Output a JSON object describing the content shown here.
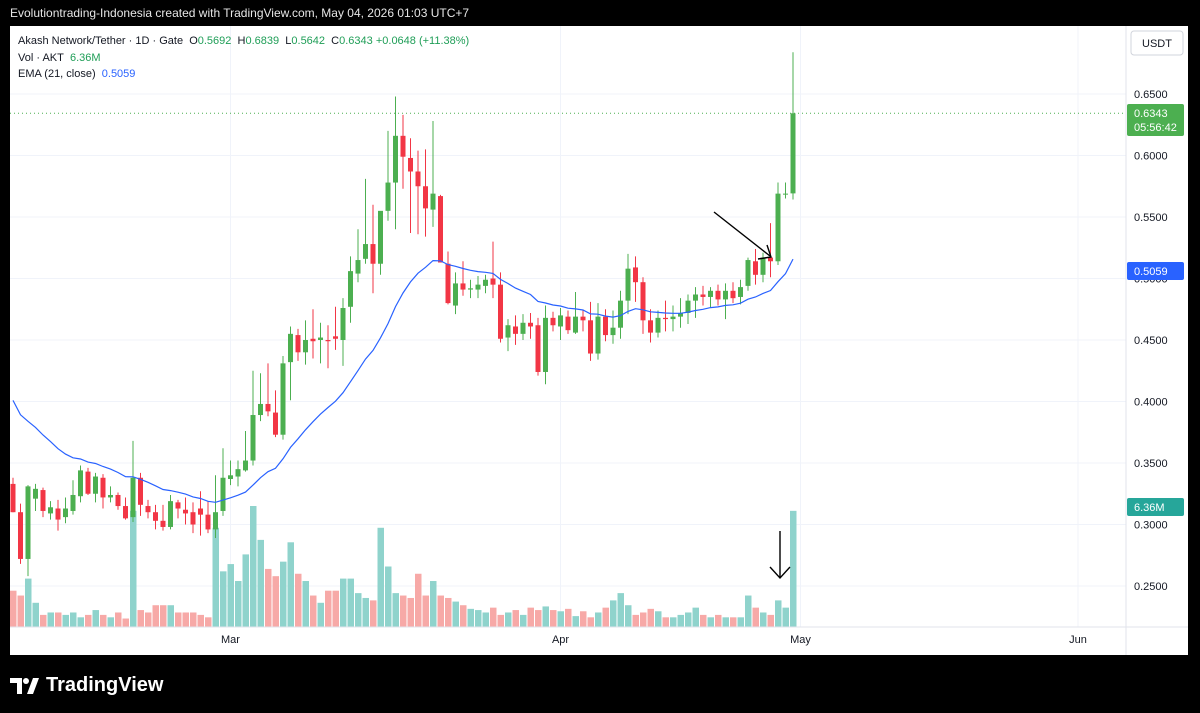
{
  "caption": "Evolutiontrading-Indonesia created with TradingView.com, May 04, 2026 01:03 UTC+7",
  "legend": {
    "symbol": "Akash Network/Tether · 1D · Gate",
    "o_label": "O",
    "o_val": "0.5692",
    "h_label": "H",
    "h_val": "0.6839",
    "l_label": "L",
    "l_val": "0.5642",
    "c_label": "C",
    "c_val": "0.6343",
    "change": "+0.0648 (+11.38%)",
    "vol_label": "Vol · AKT",
    "vol_val": "6.36M",
    "ema_label": "EMA (21, close)",
    "ema_val": "0.5059"
  },
  "currency_button": "USDT",
  "price_badge": {
    "price": "0.6343",
    "countdown": "05:56:42"
  },
  "ema_badge": "0.5059",
  "volume_badge": "6.36M",
  "brand": "TradingView",
  "colors": {
    "up": "#4caf50",
    "down": "#f23645",
    "ema": "#2962ff",
    "vol_up": "#8fd3cc",
    "vol_down": "#f7a9a7"
  },
  "chart_data": {
    "type": "candlestick",
    "y_ticks": [
      "0.6500",
      "0.6000",
      "0.5500",
      "0.5000",
      "0.4500",
      "0.4000",
      "0.3500",
      "0.3000",
      "0.2500"
    ],
    "ylim": [
      0.22,
      0.7
    ],
    "x_ticks": [
      "Mar",
      "Apr",
      "May",
      "Jun"
    ],
    "candles": [
      [
        0.333,
        0.338,
        0.31,
        0.31
      ],
      [
        0.31,
        0.317,
        0.268,
        0.272
      ],
      [
        0.272,
        0.332,
        0.258,
        0.331
      ],
      [
        0.321,
        0.333,
        0.311,
        0.329
      ],
      [
        0.328,
        0.33,
        0.306,
        0.311
      ],
      [
        0.309,
        0.319,
        0.304,
        0.314
      ],
      [
        0.313,
        0.32,
        0.295,
        0.304
      ],
      [
        0.306,
        0.322,
        0.301,
        0.313
      ],
      [
        0.311,
        0.336,
        0.308,
        0.324
      ],
      [
        0.323,
        0.348,
        0.318,
        0.344
      ],
      [
        0.343,
        0.346,
        0.324,
        0.325
      ],
      [
        0.325,
        0.342,
        0.318,
        0.339
      ],
      [
        0.338,
        0.341,
        0.313,
        0.322
      ],
      [
        0.322,
        0.331,
        0.318,
        0.324
      ],
      [
        0.324,
        0.326,
        0.312,
        0.315
      ],
      [
        0.315,
        0.322,
        0.304,
        0.305
      ],
      [
        0.306,
        0.368,
        0.302,
        0.338
      ],
      [
        0.338,
        0.342,
        0.307,
        0.316
      ],
      [
        0.315,
        0.32,
        0.305,
        0.31
      ],
      [
        0.31,
        0.316,
        0.296,
        0.303
      ],
      [
        0.303,
        0.316,
        0.295,
        0.298
      ],
      [
        0.298,
        0.324,
        0.296,
        0.319
      ],
      [
        0.318,
        0.32,
        0.305,
        0.313
      ],
      [
        0.312,
        0.322,
        0.3,
        0.309
      ],
      [
        0.31,
        0.318,
        0.293,
        0.3
      ],
      [
        0.313,
        0.327,
        0.291,
        0.308
      ],
      [
        0.308,
        0.319,
        0.293,
        0.296
      ],
      [
        0.296,
        0.34,
        0.289,
        0.31
      ],
      [
        0.311,
        0.362,
        0.307,
        0.338
      ],
      [
        0.337,
        0.352,
        0.332,
        0.34
      ],
      [
        0.339,
        0.352,
        0.331,
        0.345
      ],
      [
        0.344,
        0.376,
        0.343,
        0.352
      ],
      [
        0.352,
        0.425,
        0.348,
        0.389
      ],
      [
        0.389,
        0.423,
        0.384,
        0.398
      ],
      [
        0.398,
        0.431,
        0.388,
        0.392
      ],
      [
        0.391,
        0.409,
        0.371,
        0.373
      ],
      [
        0.373,
        0.437,
        0.369,
        0.431
      ],
      [
        0.432,
        0.461,
        0.401,
        0.455
      ],
      [
        0.454,
        0.459,
        0.433,
        0.44
      ],
      [
        0.44,
        0.466,
        0.43,
        0.45
      ],
      [
        0.451,
        0.475,
        0.435,
        0.449
      ],
      [
        0.45,
        0.464,
        0.431,
        0.452
      ],
      [
        0.45,
        0.462,
        0.427,
        0.449
      ],
      [
        0.453,
        0.477,
        0.442,
        0.451
      ],
      [
        0.45,
        0.484,
        0.429,
        0.476
      ],
      [
        0.477,
        0.518,
        0.464,
        0.506
      ],
      [
        0.504,
        0.54,
        0.497,
        0.515
      ],
      [
        0.516,
        0.581,
        0.512,
        0.528
      ],
      [
        0.528,
        0.56,
        0.488,
        0.512
      ],
      [
        0.512,
        0.552,
        0.503,
        0.555
      ],
      [
        0.555,
        0.62,
        0.547,
        0.578
      ],
      [
        0.578,
        0.648,
        0.54,
        0.616
      ],
      [
        0.616,
        0.633,
        0.573,
        0.599
      ],
      [
        0.598,
        0.614,
        0.537,
        0.587
      ],
      [
        0.587,
        0.604,
        0.536,
        0.575
      ],
      [
        0.575,
        0.605,
        0.534,
        0.557
      ],
      [
        0.556,
        0.628,
        0.542,
        0.569
      ],
      [
        0.567,
        0.568,
        0.513,
        0.513
      ],
      [
        0.512,
        0.522,
        0.479,
        0.48
      ],
      [
        0.478,
        0.505,
        0.471,
        0.496
      ],
      [
        0.496,
        0.514,
        0.486,
        0.491
      ],
      [
        0.491,
        0.499,
        0.484,
        0.492
      ],
      [
        0.491,
        0.502,
        0.484,
        0.495
      ],
      [
        0.494,
        0.503,
        0.488,
        0.499
      ],
      [
        0.5,
        0.53,
        0.484,
        0.495
      ],
      [
        0.495,
        0.505,
        0.448,
        0.451
      ],
      [
        0.452,
        0.467,
        0.441,
        0.462
      ],
      [
        0.461,
        0.47,
        0.446,
        0.455
      ],
      [
        0.455,
        0.471,
        0.45,
        0.464
      ],
      [
        0.464,
        0.472,
        0.451,
        0.461
      ],
      [
        0.462,
        0.468,
        0.421,
        0.424
      ],
      [
        0.424,
        0.478,
        0.414,
        0.468
      ],
      [
        0.468,
        0.473,
        0.457,
        0.462
      ],
      [
        0.461,
        0.476,
        0.45,
        0.47
      ],
      [
        0.469,
        0.474,
        0.455,
        0.458
      ],
      [
        0.456,
        0.489,
        0.455,
        0.469
      ],
      [
        0.469,
        0.474,
        0.457,
        0.466
      ],
      [
        0.466,
        0.481,
        0.433,
        0.439
      ],
      [
        0.439,
        0.48,
        0.434,
        0.469
      ],
      [
        0.469,
        0.475,
        0.449,
        0.454
      ],
      [
        0.454,
        0.474,
        0.447,
        0.46
      ],
      [
        0.46,
        0.49,
        0.451,
        0.482
      ],
      [
        0.482,
        0.52,
        0.471,
        0.508
      ],
      [
        0.509,
        0.518,
        0.481,
        0.497
      ],
      [
        0.497,
        0.501,
        0.455,
        0.466
      ],
      [
        0.466,
        0.475,
        0.448,
        0.456
      ],
      [
        0.456,
        0.474,
        0.452,
        0.468
      ],
      [
        0.468,
        0.482,
        0.457,
        0.467
      ],
      [
        0.467,
        0.478,
        0.457,
        0.469
      ],
      [
        0.469,
        0.484,
        0.46,
        0.472
      ],
      [
        0.472,
        0.487,
        0.463,
        0.482
      ],
      [
        0.482,
        0.493,
        0.468,
        0.487
      ],
      [
        0.487,
        0.494,
        0.478,
        0.485
      ],
      [
        0.485,
        0.493,
        0.476,
        0.49
      ],
      [
        0.49,
        0.495,
        0.478,
        0.483
      ],
      [
        0.483,
        0.496,
        0.467,
        0.49
      ],
      [
        0.49,
        0.497,
        0.48,
        0.484
      ],
      [
        0.485,
        0.499,
        0.479,
        0.493
      ],
      [
        0.494,
        0.517,
        0.49,
        0.515
      ],
      [
        0.514,
        0.524,
        0.495,
        0.503
      ],
      [
        0.503,
        0.521,
        0.497,
        0.517
      ],
      [
        0.517,
        0.545,
        0.501,
        0.514
      ],
      [
        0.514,
        0.578,
        0.511,
        0.569
      ],
      [
        0.569,
        0.578,
        0.565,
        0.569
      ],
      [
        0.5692,
        0.6839,
        0.5642,
        0.6343
      ]
    ],
    "volume_relative": [
      0.3,
      0.26,
      0.4,
      0.2,
      0.1,
      0.12,
      0.12,
      0.1,
      0.12,
      0.08,
      0.1,
      0.14,
      0.1,
      0.08,
      0.12,
      0.07,
      0.96,
      0.14,
      0.12,
      0.18,
      0.18,
      0.18,
      0.12,
      0.12,
      0.12,
      0.1,
      0.08,
      0.82,
      0.46,
      0.52,
      0.38,
      0.6,
      1.0,
      0.72,
      0.48,
      0.42,
      0.54,
      0.7,
      0.44,
      0.38,
      0.26,
      0.2,
      0.3,
      0.3,
      0.4,
      0.4,
      0.28,
      0.24,
      0.22,
      0.82,
      0.5,
      0.28,
      0.26,
      0.24,
      0.44,
      0.26,
      0.38,
      0.26,
      0.24,
      0.21,
      0.18,
      0.15,
      0.14,
      0.12,
      0.16,
      0.1,
      0.12,
      0.14,
      0.1,
      0.16,
      0.14,
      0.17,
      0.14,
      0.13,
      0.15,
      0.09,
      0.13,
      0.08,
      0.12,
      0.16,
      0.22,
      0.28,
      0.18,
      0.1,
      0.12,
      0.15,
      0.13,
      0.08,
      0.08,
      0.1,
      0.12,
      0.16,
      0.1,
      0.08,
      0.1,
      0.08,
      0.08,
      0.08,
      0.26,
      0.16,
      0.12,
      0.1,
      0.22,
      0.16,
      0.96
    ],
    "ema_endpoint": 0.5059
  }
}
